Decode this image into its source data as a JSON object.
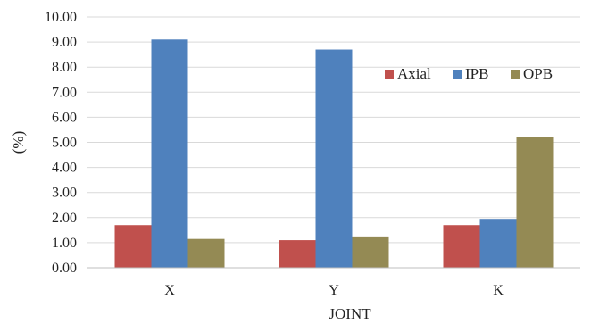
{
  "chart_data": {
    "type": "bar",
    "categories": [
      "X",
      "Y",
      "K"
    ],
    "series": [
      {
        "name": "Axial",
        "color": "#c0504d",
        "values": [
          1.7,
          1.1,
          1.7
        ]
      },
      {
        "name": "IPB",
        "color": "#4f81bd",
        "values": [
          9.1,
          8.7,
          1.95
        ]
      },
      {
        "name": "OPB",
        "color": "#948a54",
        "values": [
          1.15,
          1.25,
          5.2
        ]
      }
    ],
    "title": "",
    "xlabel": "JOINT",
    "ylabel": "(%)",
    "ylim": [
      0,
      10
    ],
    "yticks": [
      "0.00",
      "1.00",
      "2.00",
      "3.00",
      "4.00",
      "5.00",
      "6.00",
      "7.00",
      "8.00",
      "9.00",
      "10.00"
    ],
    "grid": true,
    "legend_position": "upper-right"
  }
}
